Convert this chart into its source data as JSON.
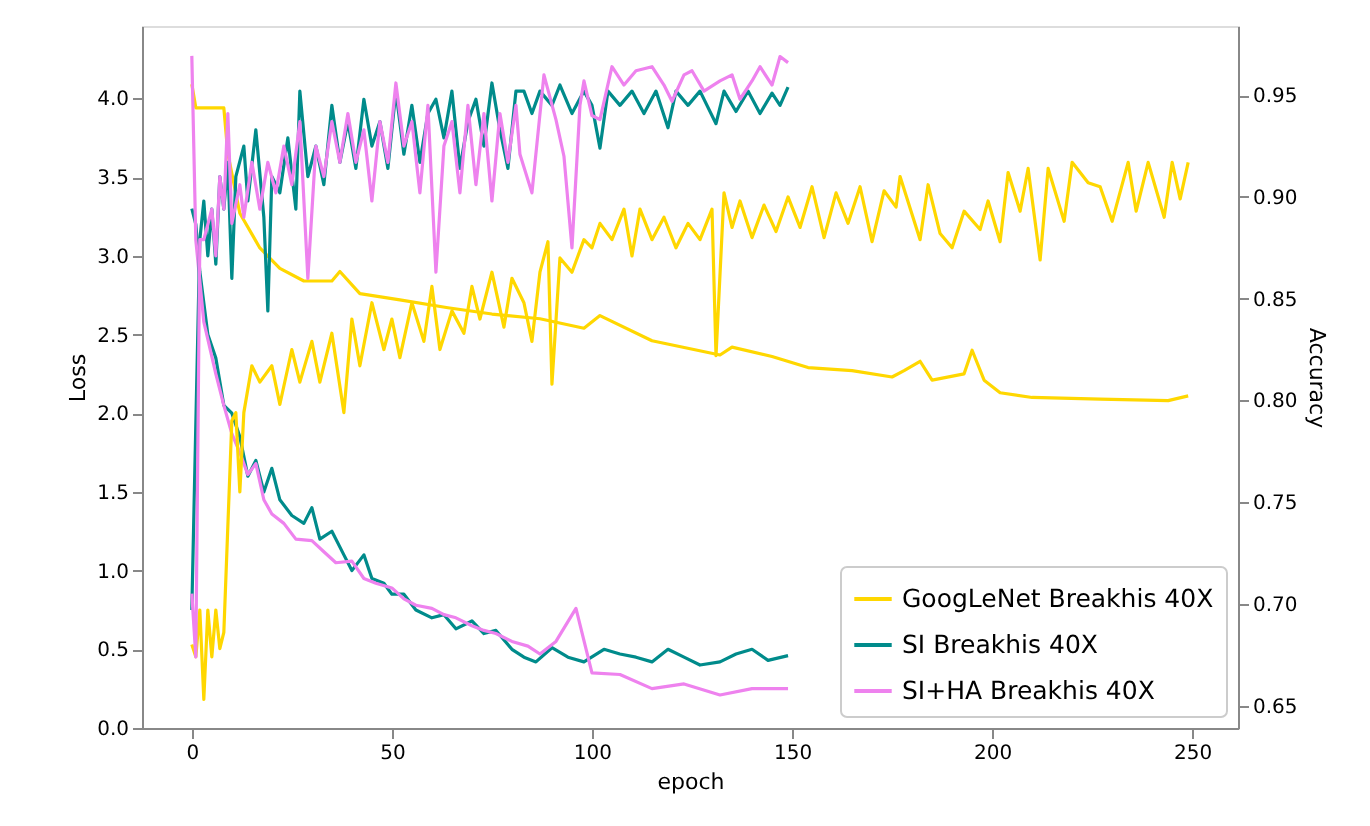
{
  "chart_data": {
    "type": "line",
    "xlabel": "epoch",
    "ylabel": "Loss",
    "y2label": "Accuracy",
    "xlim": [
      -12.45,
      261.45
    ],
    "xticks": [
      0,
      50,
      100,
      150,
      200,
      250
    ],
    "ylim": [
      0,
      4.46
    ],
    "yticks": [
      {
        "value": 0,
        "label": "0.0"
      },
      {
        "value": 0.5,
        "label": "0.5"
      },
      {
        "value": 1,
        "label": "1.0"
      },
      {
        "value": 1.5,
        "label": "1.5"
      },
      {
        "value": 2,
        "label": "2.0"
      },
      {
        "value": 2.5,
        "label": "2.5"
      },
      {
        "value": 3,
        "label": "3.0"
      },
      {
        "value": 3.5,
        "label": "3.5"
      },
      {
        "value": 4,
        "label": "4.0"
      }
    ],
    "y2lim": [
      0.639,
      0.984
    ],
    "y2ticks": [
      {
        "value": 0.65,
        "label": "0.65"
      },
      {
        "value": 0.7,
        "label": "0.70"
      },
      {
        "value": 0.75,
        "label": "0.75"
      },
      {
        "value": 0.8,
        "label": "0.80"
      },
      {
        "value": 0.85,
        "label": "0.85"
      },
      {
        "value": 0.9,
        "label": "0.90"
      },
      {
        "value": 0.95,
        "label": "0.95"
      }
    ],
    "grid": false,
    "legend": "bottom right",
    "marker": "none",
    "line_style": "solid",
    "series": [
      {
        "name": "GoogLeNet Breakhis 40X",
        "color": "#ffd700",
        "axis": "y",
        "x": [
          0,
          1,
          8,
          9,
          12,
          17,
          22,
          28,
          35,
          37,
          42,
          52,
          64,
          75,
          87,
          98,
          102,
          115,
          132,
          135,
          145,
          154,
          165,
          175,
          178,
          182,
          185,
          193,
          195,
          198,
          202,
          210,
          227,
          244,
          249
        ],
        "values": [
          4.09,
          3.94,
          3.94,
          3.65,
          3.27,
          3.05,
          2.92,
          2.84,
          2.84,
          2.9,
          2.76,
          2.72,
          2.67,
          2.63,
          2.6,
          2.54,
          2.62,
          2.46,
          2.37,
          2.42,
          2.36,
          2.29,
          2.27,
          2.23,
          2.27,
          2.33,
          2.21,
          2.25,
          2.4,
          2.21,
          2.13,
          2.1,
          2.09,
          2.08,
          2.11
        ]
      },
      {
        "name": "SI Breakhis 40X",
        "color": "#008b8b",
        "axis": "y",
        "x": [
          0,
          1,
          2,
          4,
          6,
          8,
          10,
          12,
          14,
          16,
          18,
          20,
          22,
          25,
          28,
          30,
          32,
          35,
          38,
          40,
          43,
          45,
          48,
          50,
          53,
          56,
          60,
          63,
          66,
          70,
          73,
          76,
          80,
          83,
          86,
          90,
          94,
          98,
          103,
          107,
          111,
          115,
          119,
          123,
          127,
          132,
          136,
          140,
          144,
          149
        ],
        "values": [
          3.3,
          3.2,
          2.9,
          2.5,
          2.35,
          2.05,
          2.0,
          1.85,
          1.6,
          1.7,
          1.5,
          1.65,
          1.45,
          1.35,
          1.3,
          1.4,
          1.2,
          1.25,
          1.1,
          1.0,
          1.1,
          0.95,
          0.92,
          0.85,
          0.85,
          0.75,
          0.7,
          0.72,
          0.63,
          0.68,
          0.6,
          0.62,
          0.5,
          0.45,
          0.42,
          0.51,
          0.45,
          0.42,
          0.5,
          0.47,
          0.45,
          0.42,
          0.5,
          0.45,
          0.4,
          0.42,
          0.47,
          0.5,
          0.43,
          0.46
        ]
      },
      {
        "name": "SI+HA Breakhis 40X",
        "color": "#ee82ee",
        "axis": "y",
        "x": [
          0,
          1,
          3,
          6,
          8,
          10,
          12,
          14,
          16,
          18,
          20,
          23,
          26,
          30,
          33,
          36,
          40,
          43,
          46,
          50,
          53,
          56,
          60,
          63,
          66,
          70,
          73,
          76,
          80,
          84,
          87,
          91,
          96,
          100,
          107,
          115,
          123,
          132,
          140,
          149
        ],
        "values": [
          4.27,
          3.1,
          2.58,
          2.25,
          2.05,
          1.87,
          1.75,
          1.61,
          1.68,
          1.45,
          1.36,
          1.3,
          1.2,
          1.19,
          1.12,
          1.05,
          1.06,
          0.95,
          0.92,
          0.89,
          0.82,
          0.78,
          0.76,
          0.72,
          0.7,
          0.65,
          0.62,
          0.6,
          0.55,
          0.52,
          0.47,
          0.55,
          0.76,
          0.35,
          0.34,
          0.25,
          0.28,
          0.21,
          0.25,
          0.25
        ]
      },
      {
        "color": "#ffd700",
        "axis": "y2",
        "x": [
          0,
          1,
          2,
          3,
          4,
          5,
          6,
          7,
          8,
          10,
          11,
          12,
          13,
          15,
          17,
          20,
          22,
          25,
          27,
          30,
          32,
          35,
          38,
          40,
          42,
          45,
          48,
          50,
          52,
          55,
          58,
          60,
          62,
          65,
          68,
          70,
          72,
          75,
          78,
          80,
          83,
          85,
          87,
          89,
          90,
          92,
          95,
          98,
          100,
          102,
          105,
          108,
          110,
          112,
          115,
          118,
          121,
          124,
          127,
          130,
          131,
          133,
          135,
          137,
          140,
          143,
          146,
          149,
          152,
          155,
          158,
          161,
          164,
          167,
          170,
          173,
          176,
          177,
          182,
          184,
          187,
          190,
          193,
          197,
          199,
          202,
          204,
          207,
          209,
          212,
          214,
          218,
          220,
          224,
          227,
          230,
          234,
          236,
          239,
          243,
          245,
          247,
          249
        ],
        "values": [
          0.68,
          0.674,
          0.697,
          0.653,
          0.697,
          0.674,
          0.697,
          0.678,
          0.686,
          0.79,
          0.794,
          0.755,
          0.794,
          0.817,
          0.809,
          0.817,
          0.798,
          0.825,
          0.809,
          0.829,
          0.809,
          0.833,
          0.794,
          0.84,
          0.817,
          0.848,
          0.825,
          0.84,
          0.821,
          0.848,
          0.829,
          0.856,
          0.825,
          0.844,
          0.833,
          0.856,
          0.84,
          0.863,
          0.836,
          0.86,
          0.848,
          0.829,
          0.863,
          0.878,
          0.808,
          0.87,
          0.863,
          0.879,
          0.875,
          0.887,
          0.879,
          0.894,
          0.871,
          0.894,
          0.879,
          0.89,
          0.875,
          0.887,
          0.879,
          0.894,
          0.822,
          0.902,
          0.885,
          0.898,
          0.88,
          0.896,
          0.883,
          0.9,
          0.885,
          0.905,
          0.88,
          0.902,
          0.887,
          0.905,
          0.878,
          0.903,
          0.895,
          0.91,
          0.879,
          0.906,
          0.882,
          0.875,
          0.893,
          0.884,
          0.898,
          0.878,
          0.912,
          0.893,
          0.914,
          0.869,
          0.914,
          0.888,
          0.917,
          0.907,
          0.905,
          0.888,
          0.917,
          0.893,
          0.917,
          0.89,
          0.917,
          0.899,
          0.917
        ]
      },
      {
        "color": "#008b8b",
        "axis": "y2",
        "x": [
          0,
          2,
          3,
          4,
          5,
          6,
          7,
          8,
          9,
          10,
          11,
          13,
          14,
          16,
          18,
          19,
          20,
          22,
          24,
          26,
          27,
          29,
          31,
          33,
          35,
          37,
          39,
          41,
          43,
          45,
          47,
          49,
          51,
          53,
          55,
          57,
          59,
          61,
          63,
          65,
          67,
          69,
          71,
          73,
          75,
          77,
          79,
          81,
          83,
          85,
          87,
          90,
          92,
          95,
          98,
          100,
          102,
          104,
          107,
          110,
          113,
          116,
          119,
          121,
          124,
          127,
          131,
          133,
          136,
          139,
          142,
          145,
          147,
          149
        ],
        "values": [
          0.697,
          0.879,
          0.898,
          0.871,
          0.894,
          0.867,
          0.91,
          0.894,
          0.917,
          0.86,
          0.91,
          0.925,
          0.898,
          0.933,
          0.89,
          0.844,
          0.91,
          0.902,
          0.929,
          0.894,
          0.952,
          0.91,
          0.925,
          0.906,
          0.945,
          0.917,
          0.937,
          0.914,
          0.948,
          0.925,
          0.937,
          0.914,
          0.952,
          0.921,
          0.945,
          0.917,
          0.941,
          0.948,
          0.929,
          0.952,
          0.914,
          0.937,
          0.948,
          0.925,
          0.956,
          0.933,
          0.914,
          0.952,
          0.952,
          0.941,
          0.952,
          0.945,
          0.955,
          0.941,
          0.952,
          0.945,
          0.924,
          0.952,
          0.945,
          0.952,
          0.941,
          0.952,
          0.934,
          0.952,
          0.945,
          0.952,
          0.936,
          0.952,
          0.942,
          0.952,
          0.941,
          0.951,
          0.945,
          0.954
        ]
      },
      {
        "color": "#ee82ee",
        "axis": "y2",
        "x": [
          0,
          1,
          2,
          3,
          5,
          6,
          7,
          8,
          9,
          10,
          12,
          13,
          15,
          17,
          19,
          21,
          23,
          25,
          27,
          29,
          31,
          33,
          35,
          37,
          39,
          41,
          43,
          45,
          47,
          49,
          51,
          53,
          55,
          57,
          59,
          61,
          63,
          65,
          67,
          69,
          71,
          73,
          75,
          77,
          79,
          81,
          82,
          85,
          88,
          91,
          93,
          95,
          97,
          98,
          100,
          102,
          105,
          108,
          111,
          115,
          118,
          120,
          123,
          125,
          128,
          132,
          135,
          137,
          140,
          142,
          145,
          147,
          149
        ],
        "values": [
          0.705,
          0.674,
          0.879,
          0.879,
          0.894,
          0.871,
          0.91,
          0.894,
          0.941,
          0.887,
          0.906,
          0.89,
          0.917,
          0.894,
          0.917,
          0.902,
          0.925,
          0.906,
          0.937,
          0.86,
          0.925,
          0.91,
          0.937,
          0.917,
          0.941,
          0.917,
          0.933,
          0.898,
          0.937,
          0.917,
          0.956,
          0.925,
          0.937,
          0.902,
          0.945,
          0.863,
          0.925,
          0.937,
          0.902,
          0.945,
          0.906,
          0.941,
          0.898,
          0.941,
          0.917,
          0.945,
          0.921,
          0.902,
          0.96,
          0.938,
          0.92,
          0.875,
          0.945,
          0.957,
          0.94,
          0.938,
          0.964,
          0.955,
          0.962,
          0.964,
          0.955,
          0.947,
          0.96,
          0.962,
          0.952,
          0.957,
          0.96,
          0.948,
          0.957,
          0.964,
          0.955,
          0.969,
          0.966
        ]
      }
    ]
  }
}
